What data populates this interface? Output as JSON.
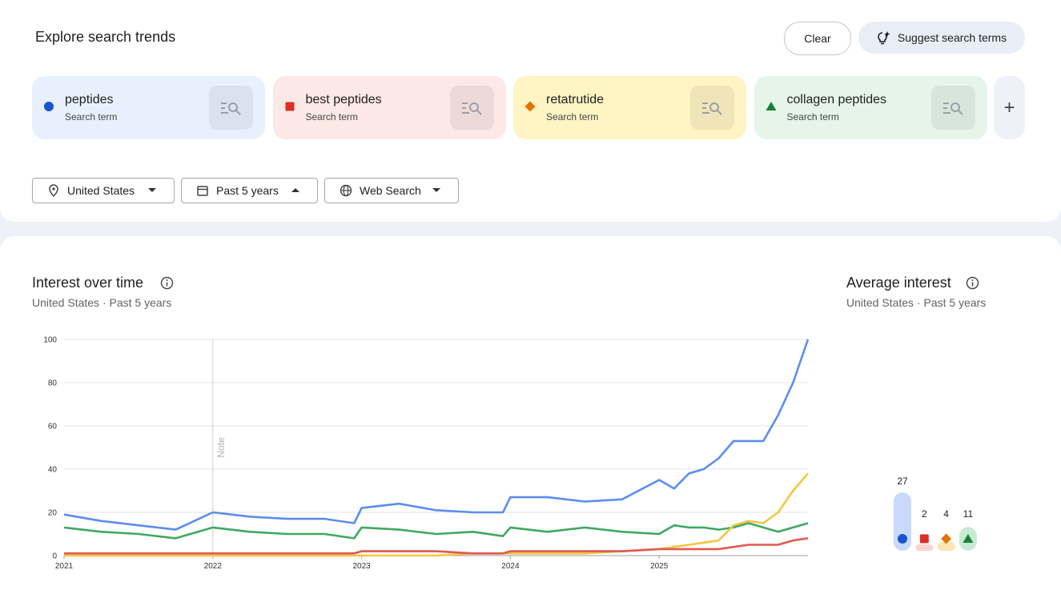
{
  "header": {
    "title": "Explore search trends",
    "clear": "Clear",
    "suggest": "Suggest search terms"
  },
  "search_term_label": "Search term",
  "filters": [
    "United States",
    "Past 5 years",
    "Web Search"
  ],
  "chart_data": [
    {
      "type": "line",
      "title": "Interest over time",
      "subtitle": "United States · Past 5 years",
      "x": [
        2021,
        2021.25,
        2021.5,
        2021.75,
        2022,
        2022.25,
        2022.5,
        2022.75,
        2022.95,
        2023,
        2023.25,
        2023.5,
        2023.75,
        2023.95,
        2024,
        2024.25,
        2024.5,
        2024.75,
        2025,
        2025.1,
        2025.2,
        2025.3,
        2025.4,
        2025.5,
        2025.6,
        2025.7,
        2025.8,
        2025.9,
        2026
      ],
      "xlim": [
        2021,
        2026
      ],
      "xticks": [
        2021,
        2022,
        2023,
        2024,
        2025
      ],
      "ylim": [
        0,
        100
      ],
      "yticks": [
        0,
        20,
        40,
        60,
        80,
        100
      ],
      "grid": true,
      "note": {
        "x": 2022,
        "text": "Note"
      },
      "series": [
        {
          "name": "peptides",
          "color": "#5b8def",
          "marker_color": "#1a53d0",
          "values": [
            19,
            16,
            14,
            12,
            20,
            18,
            17,
            17,
            15,
            22,
            24,
            21,
            20,
            20,
            27,
            27,
            25,
            26,
            35,
            31,
            38,
            40,
            45,
            53,
            53,
            53,
            65,
            80,
            100
          ]
        },
        {
          "name": "best peptides",
          "color": "#e0584e",
          "marker_color": "#d93025",
          "values": [
            1,
            1,
            1,
            1,
            1,
            1,
            1,
            1,
            1,
            2,
            2,
            2,
            1,
            1,
            2,
            2,
            2,
            2,
            3,
            3,
            3,
            3,
            3,
            4,
            5,
            5,
            5,
            7,
            8
          ]
        },
        {
          "name": "retatrutide",
          "color": "#f4c542",
          "marker_color": "#e37400",
          "values": [
            0,
            0,
            0,
            0,
            0,
            0,
            0,
            0,
            0,
            0,
            0,
            0,
            1,
            1,
            1,
            1,
            1,
            2,
            3,
            4,
            5,
            6,
            7,
            14,
            16,
            15,
            20,
            30,
            38
          ]
        },
        {
          "name": "collagen peptides",
          "color": "#3fa862",
          "marker_color": "#188038",
          "values": [
            13,
            11,
            10,
            8,
            13,
            11,
            10,
            10,
            8,
            13,
            12,
            10,
            11,
            9,
            13,
            11,
            13,
            11,
            10,
            14,
            13,
            13,
            12,
            13,
            15,
            13,
            11,
            13,
            15
          ]
        }
      ]
    },
    {
      "type": "bar",
      "title": "Average interest",
      "subtitle": "United States · Past 5 years",
      "values": [
        27,
        2,
        4,
        11
      ],
      "colors": [
        "#c8d9fb",
        "#fad3cf",
        "#fde6b3",
        "#c8ead2"
      ]
    }
  ]
}
